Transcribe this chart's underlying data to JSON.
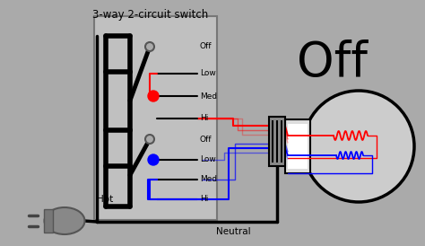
{
  "bg_color": "#aaaaaa",
  "title": "3-way 2-circuit switch",
  "hot_label": "Hot",
  "neutral_label": "Neutral",
  "big_off_text": "Off",
  "switch_labels_top": [
    "Off",
    "Low",
    "Med",
    "Hi"
  ],
  "switch_labels_bot": [
    "Off",
    "Low",
    "Med",
    "Hi"
  ],
  "fig_w": 4.74,
  "fig_h": 2.74,
  "dpi": 100
}
